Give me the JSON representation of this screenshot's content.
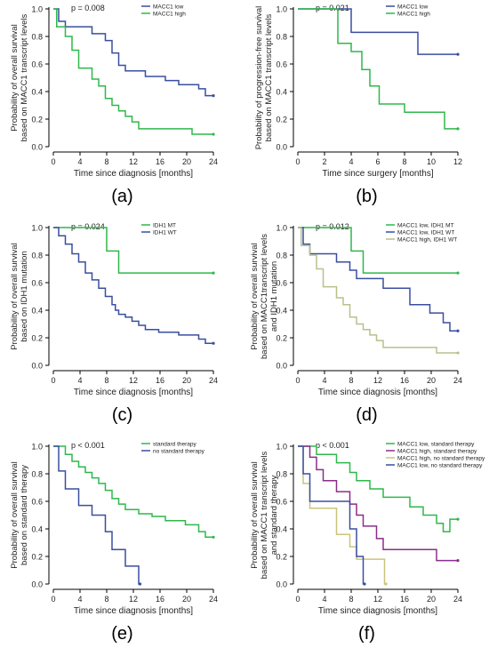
{
  "chart_data": [
    {
      "panel": "(a)",
      "type": "line",
      "step": true,
      "ylabel": "Probability of overall survival\nbased on MACC1 transcript levels",
      "xlabel": "Time since diagnosis [months]",
      "p_value": "p = 0.008",
      "x_ticks": [
        0,
        4,
        8,
        12,
        16,
        20,
        24
      ],
      "y_ticks": [
        "0.0",
        "0.2",
        "0.4",
        "0.6",
        "0.8",
        "1.0"
      ],
      "xlim": [
        0,
        24
      ],
      "ylim": [
        0,
        1.0
      ],
      "legend_position": "top-right",
      "series": [
        {
          "name": "MACC1 low",
          "color": "#3a4ea0",
          "x": [
            0,
            0.8,
            1.8,
            5.8,
            7.8,
            8.8,
            9.8,
            10.8,
            13.8,
            16.8,
            18.8,
            21.8,
            22.8,
            24
          ],
          "y": [
            1.0,
            0.91,
            0.87,
            0.82,
            0.77,
            0.68,
            0.59,
            0.55,
            0.51,
            0.48,
            0.45,
            0.42,
            0.37,
            0.37
          ]
        },
        {
          "name": "MACC1 high",
          "color": "#2eb84a",
          "x": [
            0,
            0.5,
            1.8,
            2.8,
            3.8,
            5.8,
            6.8,
            7.8,
            8.8,
            9.8,
            10.8,
            11.8,
            12.8,
            20.8,
            24
          ],
          "y": [
            1.0,
            0.87,
            0.8,
            0.7,
            0.57,
            0.49,
            0.44,
            0.35,
            0.3,
            0.26,
            0.22,
            0.18,
            0.13,
            0.09,
            0.09
          ]
        }
      ]
    },
    {
      "panel": "(b)",
      "type": "line",
      "step": true,
      "ylabel": "Probability of progression-free survival\nbased on MACC1 transcript levels",
      "xlabel": "Time since surgery [months]",
      "p_value": "p = 0.021",
      "x_ticks": [
        0,
        2,
        4,
        6,
        8,
        10,
        12
      ],
      "y_ticks": [
        "0.0",
        "0.2",
        "0.4",
        "0.6",
        "0.8",
        "1.0"
      ],
      "xlim": [
        0,
        12
      ],
      "ylim": [
        0,
        1.0
      ],
      "legend_position": "top-right",
      "series": [
        {
          "name": "MACC1 low",
          "color": "#3a4ea0",
          "x": [
            0,
            3.0,
            4.0,
            9.0,
            12
          ],
          "y": [
            1.0,
            1.0,
            0.83,
            0.67,
            0.67
          ]
        },
        {
          "name": "MACC1 high",
          "color": "#2eb84a",
          "x": [
            0,
            3.0,
            4.0,
            4.8,
            5.4,
            6.1,
            8.0,
            11.0,
            12
          ],
          "y": [
            1.0,
            0.75,
            0.69,
            0.56,
            0.44,
            0.31,
            0.25,
            0.13,
            0.13
          ]
        }
      ]
    },
    {
      "panel": "(c)",
      "type": "line",
      "step": true,
      "ylabel": "Probability of overall survival\nbased on IDH1 mutation",
      "xlabel": "Time since diagnosis [months]",
      "p_value": "p = 0.024",
      "x_ticks": [
        0,
        4,
        8,
        12,
        16,
        20,
        24
      ],
      "y_ticks": [
        "0.0",
        "0.2",
        "0.4",
        "0.6",
        "0.8",
        "1.0"
      ],
      "xlim": [
        0,
        24
      ],
      "ylim": [
        0,
        1.0
      ],
      "legend_position": "top-right",
      "series": [
        {
          "name": "IDH1 MT",
          "color": "#2eb84a",
          "x": [
            0,
            8.0,
            9.8,
            24
          ],
          "y": [
            1.0,
            0.83,
            0.67,
            0.67
          ]
        },
        {
          "name": "IDH1 WT",
          "color": "#3a4ea0",
          "x": [
            0,
            0.8,
            1.8,
            2.8,
            3.8,
            4.8,
            5.8,
            6.8,
            7.8,
            8.8,
            9.3,
            9.8,
            10.8,
            11.8,
            12.8,
            13.8,
            15.8,
            18.8,
            21.8,
            22.8,
            24
          ],
          "y": [
            1.0,
            0.94,
            0.88,
            0.81,
            0.75,
            0.67,
            0.62,
            0.56,
            0.5,
            0.44,
            0.4,
            0.37,
            0.35,
            0.32,
            0.29,
            0.26,
            0.24,
            0.22,
            0.19,
            0.16,
            0.16
          ]
        }
      ]
    },
    {
      "panel": "(d)",
      "type": "line",
      "step": true,
      "ylabel": "Probability of overall survival\nbased on MACC1transcript levels\nand IDH1 mutation",
      "xlabel": "Time since diagnosis [months]",
      "p_value": "p = 0.012",
      "x_ticks": [
        0,
        4,
        8,
        12,
        16,
        20,
        24
      ],
      "y_ticks": [
        "0.0",
        "0.2",
        "0.4",
        "0.6",
        "0.8",
        "1.0"
      ],
      "xlim": [
        0,
        24
      ],
      "ylim": [
        0,
        1.0
      ],
      "legend_position": "top-right",
      "series": [
        {
          "name": "MACC1 low, IDH1 MT",
          "color": "#2eb84a",
          "x": [
            0,
            8.0,
            9.8,
            24
          ],
          "y": [
            1.0,
            0.83,
            0.67,
            0.67
          ]
        },
        {
          "name": "MACC1 low, IDH1 WT",
          "color": "#3a4ea0",
          "x": [
            0,
            0.8,
            1.8,
            5.8,
            7.8,
            8.8,
            12.8,
            16.8,
            19.8,
            21.8,
            22.8,
            24
          ],
          "y": [
            1.0,
            0.88,
            0.81,
            0.75,
            0.69,
            0.63,
            0.56,
            0.44,
            0.38,
            0.31,
            0.25,
            0.25
          ]
        },
        {
          "name": "MACC1 high, IDH1 WT",
          "color": "#b8c08a",
          "x": [
            0,
            0.5,
            1.8,
            2.8,
            3.8,
            5.8,
            6.8,
            7.8,
            8.8,
            9.8,
            10.8,
            11.8,
            12.8,
            20.8,
            24
          ],
          "y": [
            1.0,
            0.87,
            0.8,
            0.7,
            0.57,
            0.49,
            0.44,
            0.35,
            0.3,
            0.26,
            0.22,
            0.18,
            0.13,
            0.09,
            0.09
          ]
        }
      ]
    },
    {
      "panel": "(e)",
      "type": "line",
      "step": true,
      "ylabel": "Probability of overall survival\nbased on standard therapy",
      "xlabel": "Time since diagnosis [months]",
      "p_value": "p < 0.001",
      "x_ticks": [
        0,
        4,
        8,
        12,
        16,
        20,
        24
      ],
      "y_ticks": [
        "0.0",
        "0.2",
        "0.4",
        "0.6",
        "0.8",
        "1.0"
      ],
      "xlim": [
        0,
        24
      ],
      "ylim": [
        0,
        1.0
      ],
      "legend_position": "top-right",
      "series": [
        {
          "name": "standard therapy",
          "color": "#2eb84a",
          "x": [
            0,
            1.8,
            2.8,
            3.8,
            4.8,
            5.8,
            6.8,
            7.8,
            8.8,
            9.8,
            10.8,
            12.8,
            14.8,
            16.8,
            19.8,
            21.8,
            22.8,
            24
          ],
          "y": [
            1.0,
            0.94,
            0.89,
            0.85,
            0.81,
            0.77,
            0.73,
            0.68,
            0.62,
            0.58,
            0.54,
            0.51,
            0.49,
            0.46,
            0.43,
            0.38,
            0.34,
            0.34
          ]
        },
        {
          "name": "no standard therapy",
          "color": "#3a4ea0",
          "x": [
            0,
            0.8,
            1.8,
            3.8,
            5.8,
            7.8,
            8.8,
            10.8,
            12.8,
            13.0
          ],
          "y": [
            1.0,
            0.82,
            0.69,
            0.57,
            0.5,
            0.38,
            0.25,
            0.13,
            0.0,
            0.0
          ]
        }
      ]
    },
    {
      "panel": "(f)",
      "type": "line",
      "step": true,
      "ylabel": "Probability of overall survival\nbased on MACC1 transcript levels\nand standard therapy",
      "xlabel": "Time since diagnosis [months]",
      "p_value": "p < 0.001",
      "x_ticks": [
        0,
        4,
        8,
        12,
        16,
        20,
        24
      ],
      "y_ticks": [
        "0.0",
        "0.2",
        "0.4",
        "0.6",
        "0.8",
        "1.0"
      ],
      "xlim": [
        0,
        24
      ],
      "ylim": [
        0,
        1.0
      ],
      "legend_position": "top-right",
      "series": [
        {
          "name": "MACC1 low, standard therapy",
          "color": "#2eb84a",
          "x": [
            0,
            2.8,
            5.8,
            7.8,
            8.8,
            10.8,
            12.8,
            16.8,
            18.8,
            20.8,
            21.8,
            22.8,
            24
          ],
          "y": [
            1.0,
            0.94,
            0.88,
            0.81,
            0.75,
            0.69,
            0.63,
            0.56,
            0.5,
            0.44,
            0.38,
            0.47,
            0.47
          ]
        },
        {
          "name": "MACC1 high, standard therapy",
          "color": "#8b2e8a",
          "x": [
            0,
            1.8,
            2.8,
            3.8,
            5.8,
            7.8,
            8.8,
            9.8,
            11.8,
            12.8,
            20.8,
            24
          ],
          "y": [
            1.0,
            0.92,
            0.83,
            0.75,
            0.67,
            0.58,
            0.5,
            0.42,
            0.33,
            0.25,
            0.17,
            0.17
          ]
        },
        {
          "name": "MACC1 high, no standard therapy",
          "color": "#c9c57a",
          "x": [
            0,
            0.8,
            1.8,
            3.8,
            5.8,
            7.8,
            8.8,
            13.0,
            13.2
          ],
          "y": [
            1.0,
            0.73,
            0.55,
            0.55,
            0.36,
            0.27,
            0.18,
            0.0,
            0.0
          ]
        },
        {
          "name": "MACC1 low, no standard therapy",
          "color": "#3a4ea0",
          "x": [
            0,
            0.8,
            1.8,
            5.8,
            7.8,
            8.8,
            9.8,
            10.0
          ],
          "y": [
            1.0,
            0.8,
            0.6,
            0.6,
            0.4,
            0.2,
            0.0,
            0.0
          ]
        }
      ]
    }
  ]
}
